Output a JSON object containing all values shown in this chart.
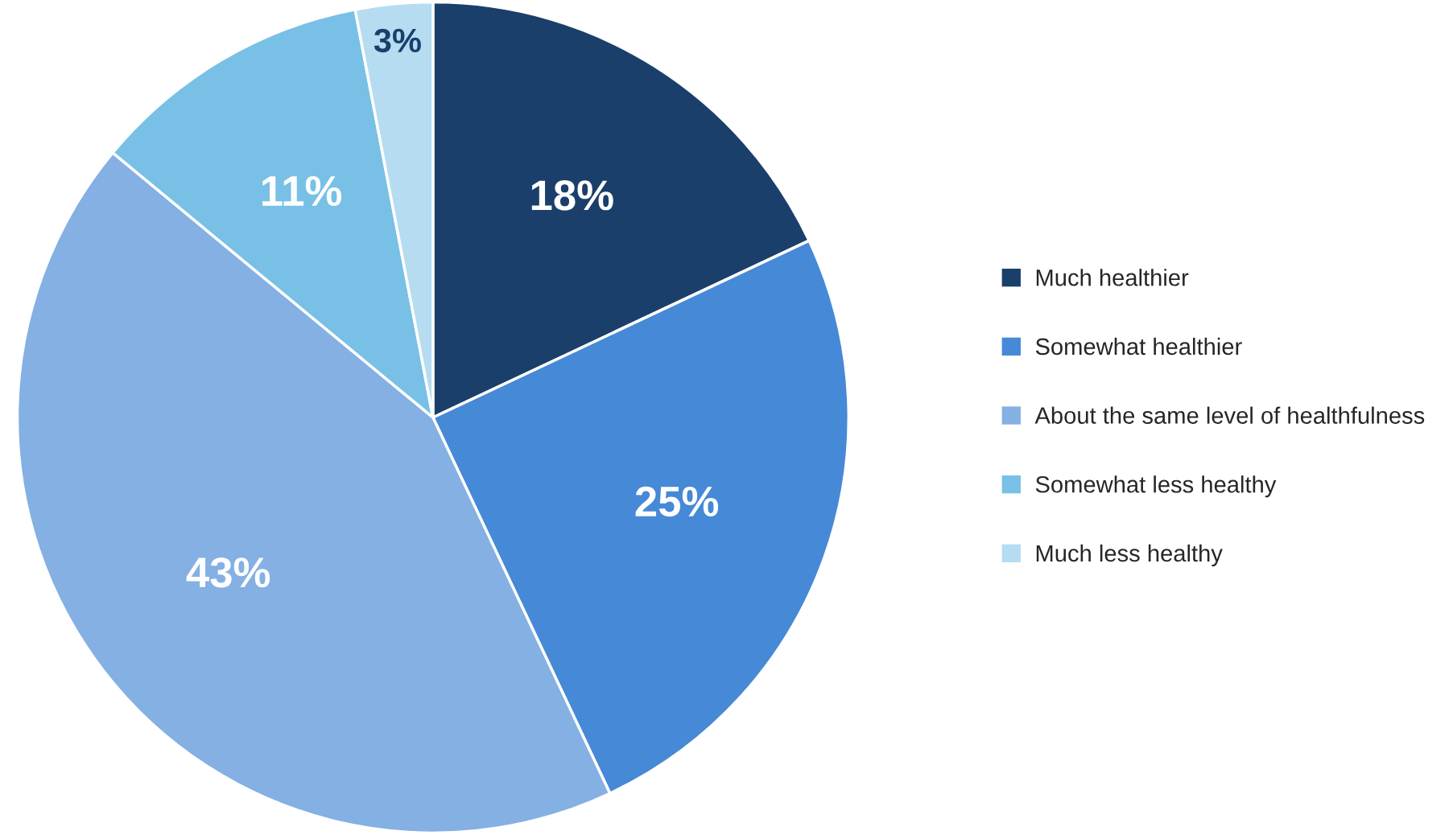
{
  "chart_data": {
    "type": "pie",
    "categories": [
      "Much healthier",
      "Somewhat healthier",
      "About the same level of healthfulness",
      "Somewhat less healthy",
      "Much less healthy"
    ],
    "values": [
      18,
      25,
      43,
      11,
      3
    ],
    "colors": [
      "#1b3f6b",
      "#4689d6",
      "#84b0e3",
      "#78c0e6",
      "#b5dcf1"
    ],
    "value_labels": [
      "18%",
      "25%",
      "43%",
      "11%",
      "3%"
    ],
    "legend": "right"
  }
}
